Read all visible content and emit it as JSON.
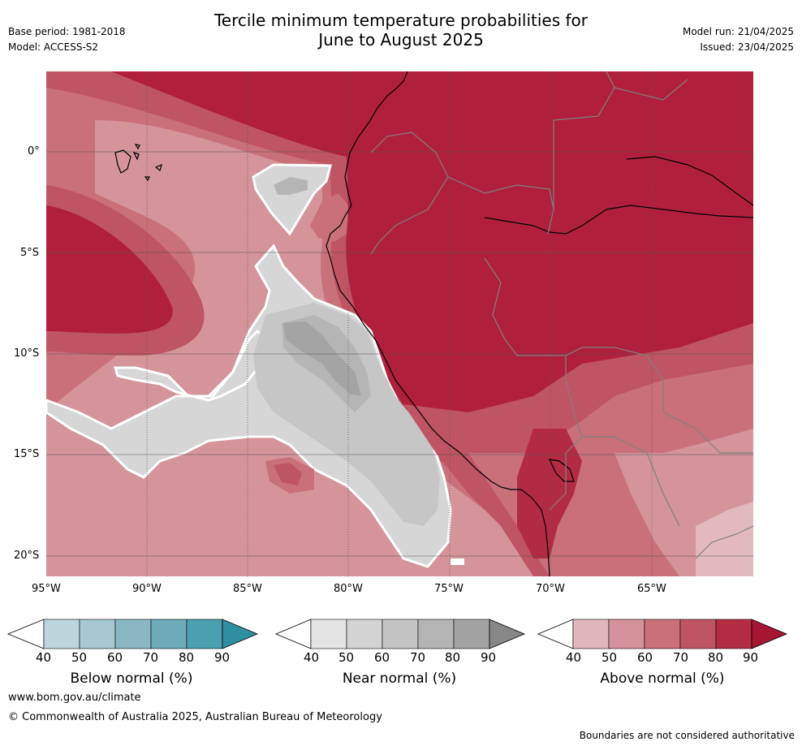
{
  "header": {
    "title_line1": "Tercile minimum temperature probabilities for",
    "title_line2": "June to August 2025",
    "base_period": "Base period: 1981-2018",
    "model": "Model: ACCESS-S2",
    "model_run": "Model run: 21/04/2025",
    "issued": "Issued: 23/04/2025"
  },
  "map": {
    "lat_labels": [
      "0°",
      "5°S",
      "10°S",
      "15°S",
      "20°S"
    ],
    "lon_labels": [
      "95°W",
      "90°W",
      "85°W",
      "80°W",
      "75°W",
      "70°W",
      "65°W"
    ],
    "colors": {
      "above_40": "#e2b9bd",
      "above_50": "#d5939a",
      "above_60": "#c97079",
      "above_70": "#bf5463",
      "above_80": "#b32b43",
      "above_90": "#b0203c",
      "near_50": "#d6d6d6",
      "near_60": "#c6c6c6",
      "near_70": "#b5b5b5",
      "near_80": "#a4a4a4"
    }
  },
  "colorbars": [
    {
      "name": "below",
      "label": "Below normal (%)",
      "ticks": [
        "40",
        "50",
        "60",
        "70",
        "80",
        "90"
      ],
      "colors": [
        "#bdd5dc",
        "#a6c8d0",
        "#89b8c4",
        "#6cabb8",
        "#4aa0b0",
        "#2f8fa0"
      ]
    },
    {
      "name": "near",
      "label": "Near normal (%)",
      "ticks": [
        "40",
        "50",
        "60",
        "70",
        "80",
        "90"
      ],
      "colors": [
        "#e4e4e4",
        "#d3d3d3",
        "#c4c4c4",
        "#b4b4b4",
        "#a3a3a3",
        "#878787"
      ]
    },
    {
      "name": "above",
      "label": "Above normal (%)",
      "ticks": [
        "40",
        "50",
        "60",
        "70",
        "80",
        "90"
      ],
      "colors": [
        "#e0b7bc",
        "#d5929a",
        "#c97079",
        "#bf5564",
        "#b32c44",
        "#a51633"
      ]
    }
  ],
  "footer": {
    "website": "www.bom.gov.au/climate",
    "copyright": "© Commonwealth of Australia 2025, Australian Bureau of Meteorology",
    "disclaimer": "Boundaries are not considered authoritative"
  }
}
